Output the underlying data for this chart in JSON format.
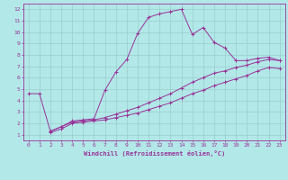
{
  "title": "",
  "xlabel": "Windchill (Refroidissement éolien,°C)",
  "bg_color": "#b2e8e8",
  "grid_color": "#9ccece",
  "line_color": "#993399",
  "xlim": [
    -0.5,
    23.5
  ],
  "ylim": [
    0.5,
    12.5
  ],
  "xticks": [
    0,
    1,
    2,
    3,
    4,
    5,
    6,
    7,
    8,
    9,
    10,
    11,
    12,
    13,
    14,
    15,
    16,
    17,
    18,
    19,
    20,
    21,
    22,
    23
  ],
  "yticks": [
    1,
    2,
    3,
    4,
    5,
    6,
    7,
    8,
    9,
    10,
    11,
    12
  ],
  "line1_x": [
    0,
    1,
    2,
    3,
    4,
    5,
    6,
    7,
    8,
    9,
    10,
    11,
    12,
    13,
    14,
    15,
    16,
    17,
    18,
    19,
    20,
    21,
    22,
    23
  ],
  "line1_y": [
    4.6,
    4.6,
    1.3,
    1.7,
    2.2,
    2.3,
    2.4,
    4.9,
    6.5,
    7.6,
    9.9,
    11.3,
    11.6,
    11.8,
    12.0,
    9.8,
    10.4,
    9.1,
    8.6,
    7.5,
    7.5,
    7.7,
    7.8,
    7.5
  ],
  "line2_x": [
    2,
    3,
    4,
    5,
    6,
    7,
    8,
    9,
    10,
    11,
    12,
    13,
    14,
    15,
    16,
    17,
    18,
    19,
    20,
    21,
    22,
    23
  ],
  "line2_y": [
    1.3,
    1.7,
    2.1,
    2.2,
    2.3,
    2.5,
    2.8,
    3.1,
    3.4,
    3.8,
    4.2,
    4.6,
    5.1,
    5.6,
    6.0,
    6.4,
    6.6,
    6.9,
    7.1,
    7.4,
    7.6,
    7.5
  ],
  "line3_x": [
    2,
    3,
    4,
    5,
    6,
    7,
    8,
    9,
    10,
    11,
    12,
    13,
    14,
    15,
    16,
    17,
    18,
    19,
    20,
    21,
    22,
    23
  ],
  "line3_y": [
    1.2,
    1.5,
    2.0,
    2.1,
    2.2,
    2.3,
    2.5,
    2.7,
    2.9,
    3.2,
    3.5,
    3.8,
    4.2,
    4.6,
    4.9,
    5.3,
    5.6,
    5.9,
    6.2,
    6.6,
    6.9,
    6.8
  ]
}
